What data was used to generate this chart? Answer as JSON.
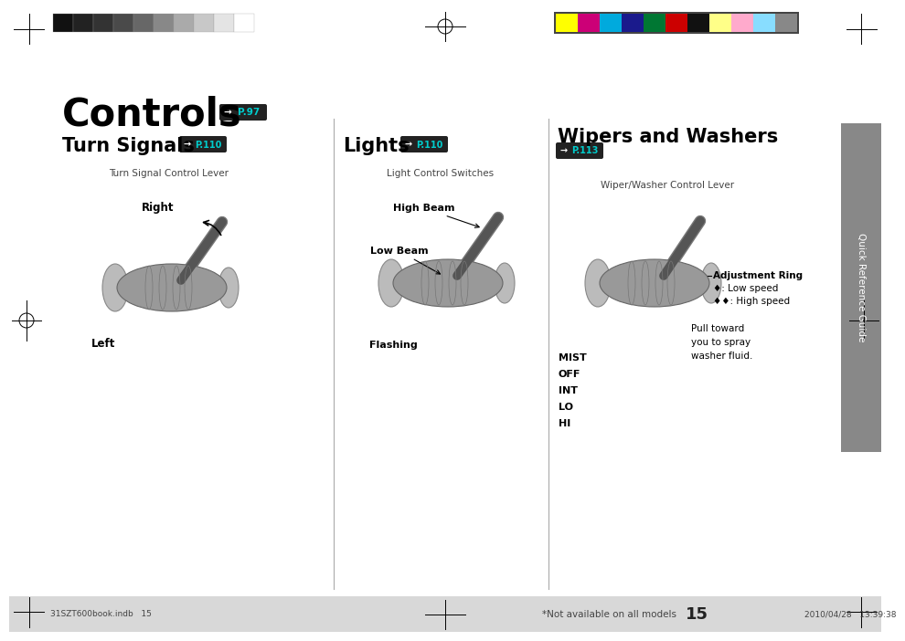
{
  "bg_color": "#ffffff",
  "footer_bg": "#d8d8d8",
  "page_num": "15",
  "footer_note": "*Not available on all models",
  "footer_left": "31SZT600book.indb   15",
  "footer_right": "2010/04/28   13:39:38",
  "title": "Controls",
  "title_page_ref": "P.97",
  "section1_title": "Turn Signals",
  "section1_ref": "P.110",
  "section1_sub": "Turn Signal Control Lever",
  "section1_label_right": "Right",
  "section1_label_left": "Left",
  "section2_title": "Lights",
  "section2_ref": "P.110",
  "section2_sub": "Light Control Switches",
  "section2_label_highbeam": "High Beam",
  "section2_label_lowbeam": "Low Beam",
  "section2_label_flashing": "Flashing",
  "section3_title": "Wipers and Washers",
  "section3_ref": "P.113",
  "section3_sub": "Wiper/Washer Control Lever",
  "section3_label_adj": "Adjustment Ring",
  "section3_label_low": "♦: Low speed",
  "section3_label_high": "♦♦: High speed",
  "section3_label_pull": "Pull toward\nyou to spray\nwasher fluid.",
  "section3_labels_list": [
    "MIST",
    "OFF",
    "INT",
    "LO",
    "HI"
  ],
  "sidebar_text": "Quick Reference Guide",
  "grayscale_colors": [
    "#111111",
    "#222222",
    "#333333",
    "#4a4a4a",
    "#676767",
    "#888888",
    "#aaaaaa",
    "#c8c8c8",
    "#e4e4e4",
    "#ffffff"
  ],
  "color_swatches": [
    "#ffff00",
    "#cc0077",
    "#00aadd",
    "#1a1a8c",
    "#007733",
    "#cc0000",
    "#111111",
    "#ffff88",
    "#ffaacc",
    "#88ddff",
    "#888888"
  ],
  "ref_badge_bg": "#222222",
  "ref_badge_text_color": "#00cccc",
  "ref_arrow_color": "#ffffff",
  "div_color": "#aaaaaa"
}
